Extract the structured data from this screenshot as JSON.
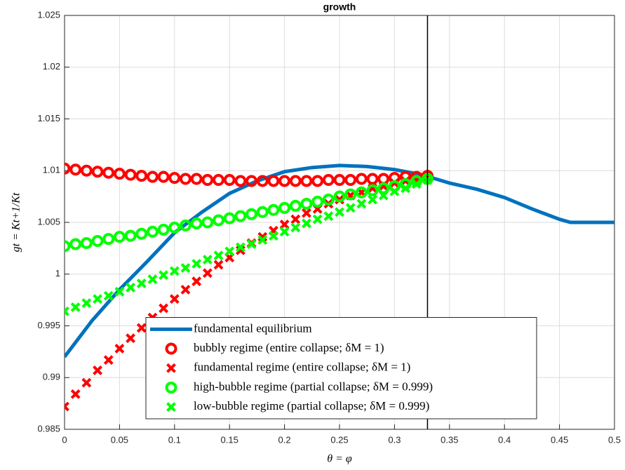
{
  "chart_data": {
    "type": "line",
    "title": "growth",
    "x_label": "θ = φ",
    "y_label": "gt = Kt+1/Kt",
    "xlim": [
      0,
      0.5
    ],
    "ylim": [
      0.985,
      1.025
    ],
    "xticks": [
      0,
      0.05,
      0.1,
      0.15,
      0.2,
      0.25,
      0.3,
      0.35,
      0.4,
      0.45,
      0.5
    ],
    "yticks": [
      0.985,
      0.99,
      0.995,
      1,
      1.005,
      1.01,
      1.015,
      1.02,
      1.025
    ],
    "grid": true,
    "legend_loc": "south",
    "vline": 0.33,
    "series": [
      {
        "name": "fundamental equilibrium",
        "color": "#0072bd",
        "marker": "line",
        "x": [
          0,
          0.025,
          0.05,
          0.075,
          0.1,
          0.125,
          0.15,
          0.175,
          0.2,
          0.225,
          0.25,
          0.275,
          0.3,
          0.325,
          0.35,
          0.375,
          0.4,
          0.425,
          0.45,
          0.46,
          0.475,
          0.5
        ],
        "values": [
          0.992,
          0.9955,
          0.9985,
          1.0012,
          1.004,
          1.006,
          1.0078,
          1.009,
          1.0099,
          1.0103,
          1.0105,
          1.0104,
          1.0101,
          1.0096,
          1.0088,
          1.0082,
          1.0074,
          1.0063,
          1.0053,
          1.005,
          1.005,
          1.005
        ]
      },
      {
        "name": "bubbly regime (entire collapse; δM = 1)",
        "color": "#ff0000",
        "marker": "o",
        "x": [
          0,
          0.01,
          0.02,
          0.03,
          0.04,
          0.05,
          0.06,
          0.07,
          0.08,
          0.09,
          0.1,
          0.11,
          0.12,
          0.13,
          0.14,
          0.15,
          0.16,
          0.17,
          0.18,
          0.19,
          0.2,
          0.21,
          0.22,
          0.23,
          0.24,
          0.25,
          0.26,
          0.27,
          0.28,
          0.29,
          0.3,
          0.31,
          0.32,
          0.33
        ],
        "values": [
          1.0102,
          1.0101,
          1.01,
          1.0099,
          1.0098,
          1.0097,
          1.0096,
          1.0095,
          1.0094,
          1.0094,
          1.0093,
          1.0092,
          1.0092,
          1.0091,
          1.0091,
          1.0091,
          1.009,
          1.009,
          1.009,
          1.009,
          1.009,
          1.009,
          1.009,
          1.009,
          1.0091,
          1.0091,
          1.0091,
          1.0092,
          1.0092,
          1.0092,
          1.0093,
          1.0094,
          1.0094,
          1.0095
        ]
      },
      {
        "name": "fundamental regime (entire collapse; δM = 1)",
        "color": "#ff0000",
        "marker": "x",
        "x": [
          0,
          0.01,
          0.02,
          0.03,
          0.04,
          0.05,
          0.06,
          0.07,
          0.08,
          0.09,
          0.1,
          0.11,
          0.12,
          0.13,
          0.14,
          0.15,
          0.16,
          0.17,
          0.18,
          0.19,
          0.2,
          0.21,
          0.22,
          0.23,
          0.24,
          0.25,
          0.26,
          0.27,
          0.28,
          0.29,
          0.3,
          0.31,
          0.32,
          0.33
        ],
        "values": [
          0.9872,
          0.9884,
          0.9895,
          0.9907,
          0.9917,
          0.9928,
          0.9938,
          0.9948,
          0.9958,
          0.9967,
          0.9976,
          0.9985,
          0.9993,
          1.0001,
          1.0009,
          1.0016,
          1.0023,
          1.003,
          1.0036,
          1.0042,
          1.0048,
          1.0053,
          1.0059,
          1.0063,
          1.0068,
          1.0072,
          1.0076,
          1.0079,
          1.0083,
          1.0085,
          1.0088,
          1.009,
          1.0092,
          1.0094
        ]
      },
      {
        "name": "high-bubble regime (partial collapse; δM = 0.999)",
        "color": "#00ff00",
        "marker": "o",
        "x": [
          0,
          0.01,
          0.02,
          0.03,
          0.04,
          0.05,
          0.06,
          0.07,
          0.08,
          0.09,
          0.1,
          0.11,
          0.12,
          0.13,
          0.14,
          0.15,
          0.16,
          0.17,
          0.18,
          0.19,
          0.2,
          0.21,
          0.22,
          0.23,
          0.24,
          0.25,
          0.26,
          0.27,
          0.28,
          0.29,
          0.3,
          0.31,
          0.32,
          0.33
        ],
        "values": [
          1.0027,
          1.0029,
          1.003,
          1.0032,
          1.0034,
          1.0036,
          1.0037,
          1.0039,
          1.0041,
          1.0043,
          1.0045,
          1.0047,
          1.0049,
          1.005,
          1.0052,
          1.0054,
          1.0056,
          1.0058,
          1.006,
          1.0062,
          1.0064,
          1.0066,
          1.0068,
          1.007,
          1.0072,
          1.0075,
          1.0077,
          1.0079,
          1.0081,
          1.0083,
          1.0085,
          1.0087,
          1.009,
          1.0092
        ]
      },
      {
        "name": "low-bubble regime (partial collapse; δM = 0.999)",
        "color": "#00ff00",
        "marker": "x",
        "x": [
          0,
          0.01,
          0.02,
          0.03,
          0.04,
          0.05,
          0.06,
          0.07,
          0.08,
          0.09,
          0.1,
          0.11,
          0.12,
          0.13,
          0.14,
          0.15,
          0.16,
          0.17,
          0.18,
          0.19,
          0.2,
          0.21,
          0.22,
          0.23,
          0.24,
          0.25,
          0.26,
          0.27,
          0.28,
          0.29,
          0.3,
          0.31,
          0.32,
          0.33
        ],
        "values": [
          0.9964,
          0.9968,
          0.9972,
          0.9976,
          0.9979,
          0.9983,
          0.9987,
          0.9991,
          0.9995,
          0.9999,
          1.0003,
          1.0006,
          1.001,
          1.0014,
          1.0018,
          1.0022,
          1.0026,
          1.0029,
          1.0033,
          1.0037,
          1.0041,
          1.0045,
          1.0049,
          1.0053,
          1.0056,
          1.006,
          1.0064,
          1.0068,
          1.0072,
          1.0076,
          1.008,
          1.0083,
          1.0087,
          1.0091
        ]
      }
    ]
  }
}
